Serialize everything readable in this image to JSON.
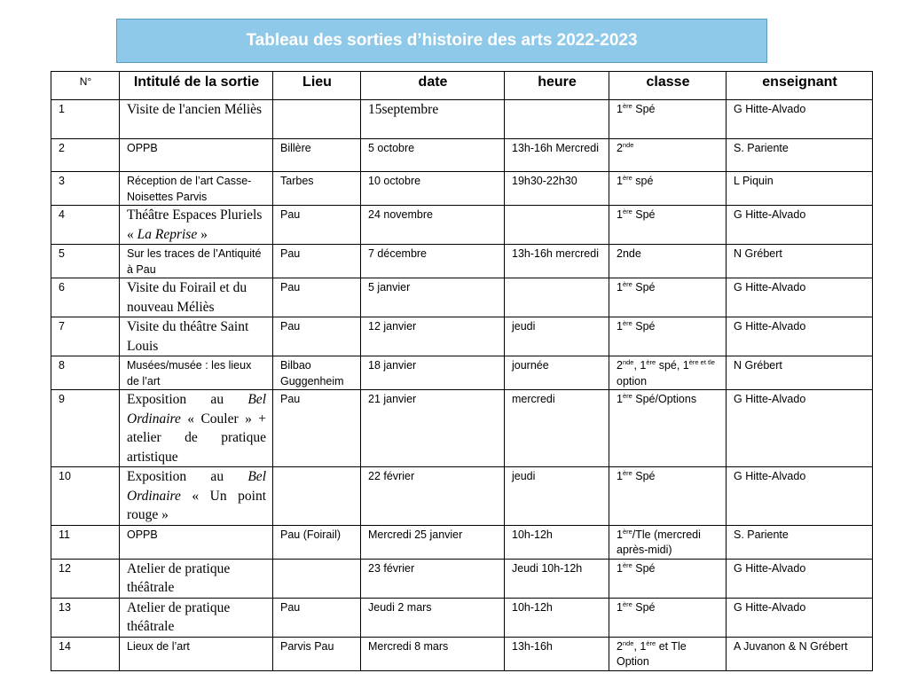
{
  "title": "Tableau des sorties d’histoire des arts 2022-2023",
  "columns": [
    "N°",
    "Intitulé de la sortie",
    "Lieu",
    "date",
    "heure",
    "classe",
    "enseignant"
  ],
  "rows": [
    {
      "n": "1",
      "intitule": "Visite de l'ancien Méliès",
      "lieu": "",
      "date": "15septembre",
      "heure": "",
      "classe": [
        {
          "t": "1"
        },
        {
          "t": "ère",
          "sup": true
        },
        {
          "t": " Spé"
        }
      ],
      "enseignant": "G Hitte-Alvado"
    },
    {
      "n": "2",
      "intitule": "OPPB",
      "lieu": "Billère",
      "date": "5 octobre",
      "heure": "13h-16h Mercredi",
      "classe": [
        {
          "t": "2"
        },
        {
          "t": "nde",
          "sup": true
        }
      ],
      "enseignant": "S. Pariente"
    },
    {
      "n": "3",
      "intitule": "Réception de l’art Casse-Noisettes Parvis",
      "lieu": "Tarbes",
      "date": "10 octobre",
      "heure": "19h30-22h30",
      "classe": [
        {
          "t": "1"
        },
        {
          "t": "ère",
          "sup": true
        },
        {
          "t": " spé"
        }
      ],
      "enseignant": "L Piquin"
    },
    {
      "n": "4",
      "intitule": [
        {
          "t": "Théâtre Espaces Pluriels « "
        },
        {
          "t": "La Reprise",
          "i": true
        },
        {
          "t": " »"
        }
      ],
      "lieu": "Pau",
      "date": "24 novembre",
      "heure": "",
      "classe": [
        {
          "t": "1"
        },
        {
          "t": "ère",
          "sup": true
        },
        {
          "t": " Spé"
        }
      ],
      "enseignant": "G Hitte-Alvado"
    },
    {
      "n": "5",
      "intitule": "Sur les traces de l’Antiquité à Pau",
      "lieu": "Pau",
      "date": "7 décembre",
      "heure": "13h-16h mercredi",
      "classe": "2nde",
      "enseignant": "N Grébert"
    },
    {
      "n": "6",
      "intitule": "Visite du Foirail et du nouveau Méliès",
      "lieu": "Pau",
      "date": "5 janvier",
      "heure": "",
      "classe": [
        {
          "t": "1"
        },
        {
          "t": "ère",
          "sup": true
        },
        {
          "t": " Spé"
        }
      ],
      "enseignant": "G Hitte-Alvado"
    },
    {
      "n": "7",
      "intitule": "Visite du théâtre Saint Louis",
      "lieu": "Pau",
      "date": "12 janvier",
      "heure": "jeudi",
      "classe": [
        {
          "t": "1"
        },
        {
          "t": "ère",
          "sup": true
        },
        {
          "t": " Spé"
        }
      ],
      "enseignant": "G Hitte-Alvado"
    },
    {
      "n": "8",
      "intitule": "Musées/musée : les lieux de l’art",
      "lieu": "Bilbao Guggenheim",
      "date": " 18 janvier",
      "heure": "journée",
      "classe": [
        {
          "t": "2"
        },
        {
          "t": "nde",
          "sup": true
        },
        {
          "t": ", 1"
        },
        {
          "t": "ère",
          "sup": true
        },
        {
          "t": " spé, 1"
        },
        {
          "t": "ère et tle",
          "sup": true
        },
        {
          "t": " option"
        }
      ],
      "enseignant": "N Grébert"
    },
    {
      "n": "9",
      "intitule": [
        {
          "t": "Exposition au "
        },
        {
          "t": "Bel Ordinaire",
          "i": true
        },
        {
          "t": " « Couler » + atelier de pratique artistique"
        }
      ],
      "lieu": "Pau",
      "date": "21 janvier",
      "heure": "mercredi",
      "classe": [
        {
          "t": "1"
        },
        {
          "t": "ère",
          "sup": true
        },
        {
          "t": " Spé/Options"
        }
      ],
      "enseignant": "G Hitte-Alvado"
    },
    {
      "n": "10",
      "intitule": [
        {
          "t": "Exposition au "
        },
        {
          "t": "Bel Ordinaire",
          "i": true
        },
        {
          "t": " « Un point rouge »"
        }
      ],
      "lieu": "",
      "date": "22 février",
      "heure": "jeudi",
      "classe": [
        {
          "t": "1"
        },
        {
          "t": "ère",
          "sup": true
        },
        {
          "t": " Spé"
        }
      ],
      "enseignant": "G Hitte-Alvado"
    },
    {
      "n": "11",
      "intitule": "OPPB",
      "lieu": "Pau (Foirail)",
      "date": "Mercredi 25 janvier",
      "heure": "10h-12h",
      "classe": [
        {
          "t": "1"
        },
        {
          "t": "ère",
          "sup": true
        },
        {
          "t": "/Tle (mercredi après-midi)"
        }
      ],
      "enseignant": "S. Pariente"
    },
    {
      "n": "12",
      "intitule": "Atelier de pratique théâtrale",
      "lieu": "",
      "date": "23 février",
      "heure": "Jeudi 10h-12h",
      "classe": [
        {
          "t": "1"
        },
        {
          "t": "ère",
          "sup": true
        },
        {
          "t": " Spé"
        }
      ],
      "enseignant": "G Hitte-Alvado"
    },
    {
      "n": "13",
      "intitule": "Atelier de pratique théâtrale",
      "lieu": "Pau",
      "date": "Jeudi 2 mars",
      "heure": "10h-12h",
      "classe": [
        {
          "t": "1"
        },
        {
          "t": "ère",
          "sup": true
        },
        {
          "t": " Spé"
        }
      ],
      "enseignant": "G Hitte-Alvado"
    },
    {
      "n": "14",
      "intitule": "Lieux de l’art",
      "lieu": "Parvis Pau",
      "date": "Mercredi 8 mars",
      "heure": "13h-16h",
      "classe": [
        {
          "t": "2"
        },
        {
          "t": "nde",
          "sup": true
        },
        {
          "t": ", 1"
        },
        {
          "t": "ère",
          "sup": true
        },
        {
          "t": " et Tle Option"
        }
      ],
      "enseignant": "A Juvanon & N Grébert"
    }
  ]
}
